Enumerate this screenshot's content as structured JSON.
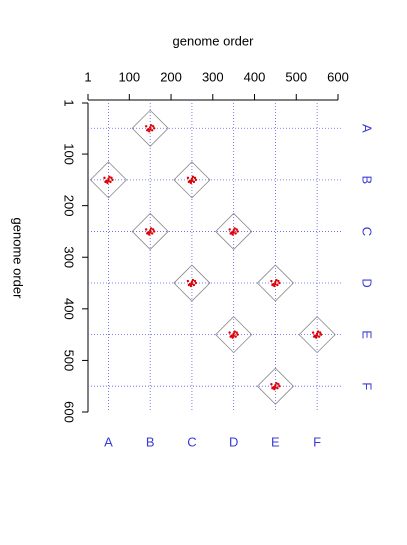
{
  "chart_data": {
    "type": "dotplot",
    "x_label": "genome order",
    "y_label": "genome order",
    "xlim": [
      1,
      600
    ],
    "ylim": [
      1,
      600
    ],
    "xticks": [
      1,
      100,
      200,
      300,
      400,
      500,
      600
    ],
    "yticks": [
      1,
      100,
      200,
      300,
      400,
      500,
      600
    ],
    "categories": [
      "A",
      "B",
      "C",
      "D",
      "E",
      "F"
    ],
    "category_positions": [
      50,
      150,
      250,
      350,
      450,
      550
    ],
    "grid": true,
    "grid_color": "#5b5bf0",
    "marker_color": "#e00000",
    "diamond_color": "#888888",
    "points": {
      "x": [
        150,
        50,
        250,
        150,
        350,
        250,
        450,
        350,
        550,
        450
      ],
      "y": [
        50,
        150,
        150,
        250,
        250,
        350,
        350,
        450,
        450,
        550
      ]
    }
  }
}
